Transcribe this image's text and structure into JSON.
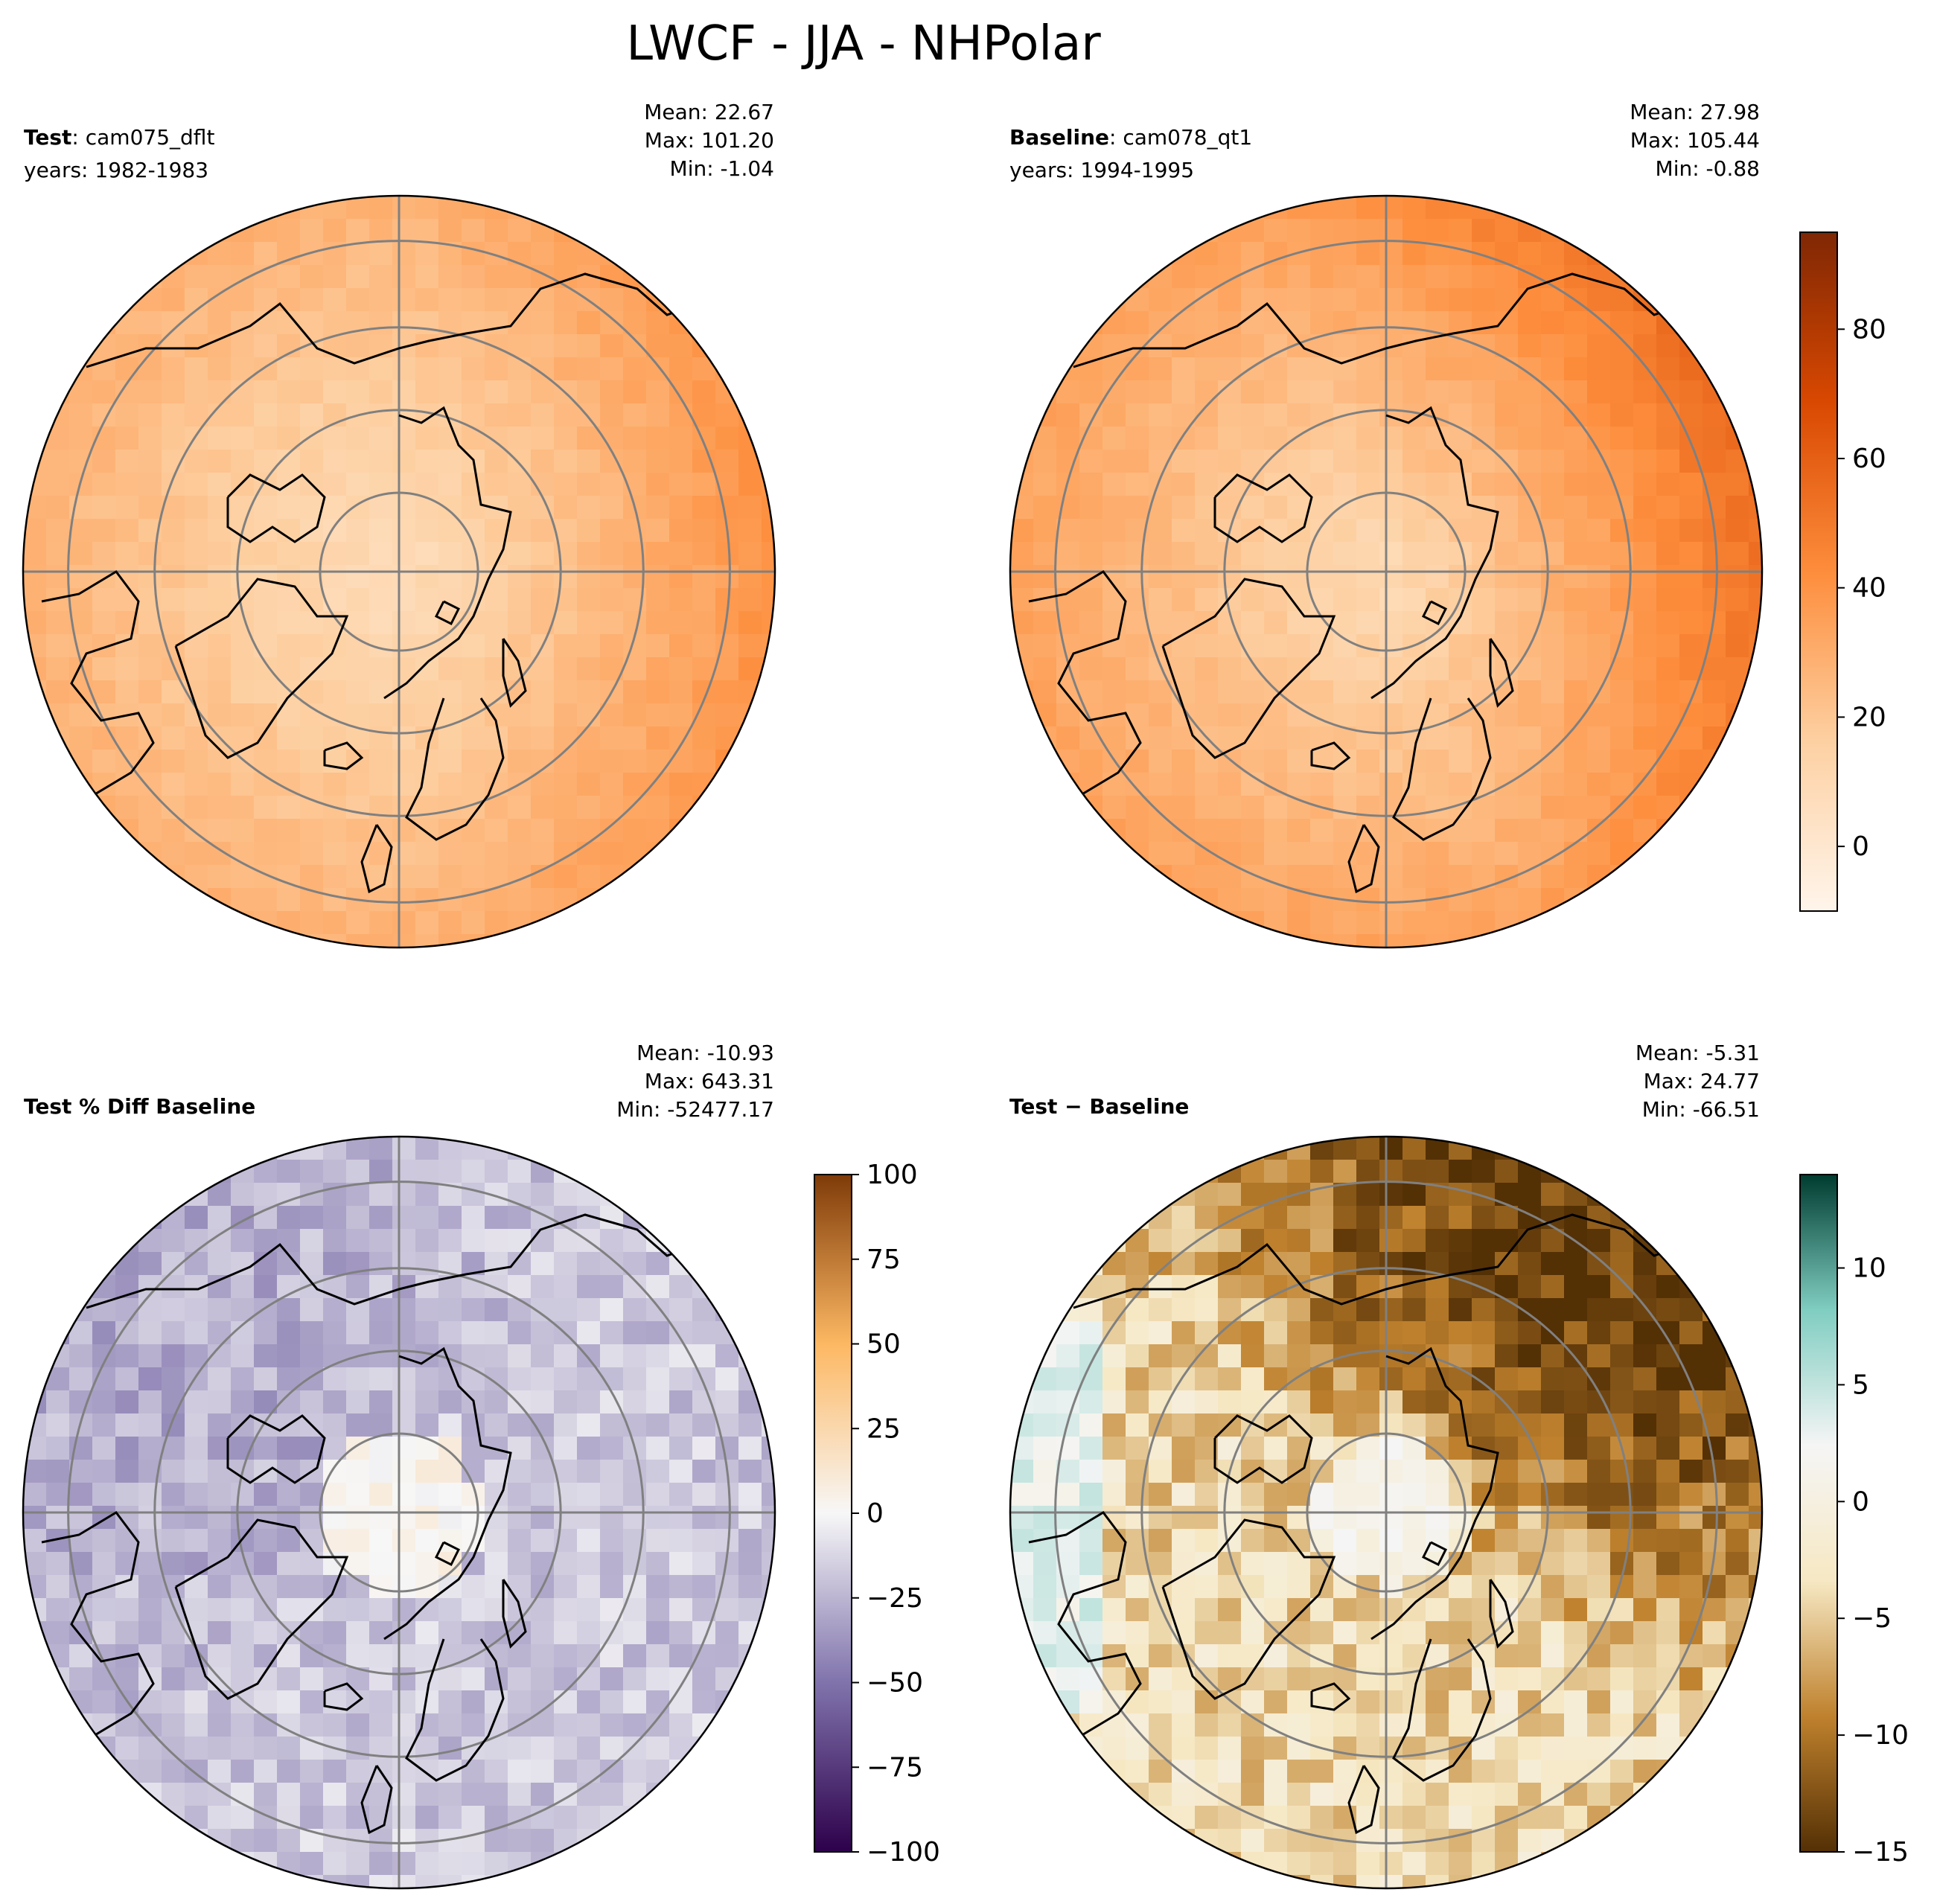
{
  "title": "LWCF - JJA - NHPolar",
  "panels": [
    {
      "id": "test",
      "label_bold": "Test",
      "label_rest": ": cam075_dflt",
      "sub": "years: 1982-1983",
      "stats": [
        "Mean: 22.67",
        "Max: 101.20",
        "Min: -1.04"
      ],
      "colormap": [
        "#fff5eb",
        "#fdd0a2",
        "#fd8d3c",
        "#d94801",
        "#7f2704"
      ]
    },
    {
      "id": "baseline",
      "label_bold": "Baseline",
      "label_rest": ": cam078_qt1",
      "sub": "years: 1994-1995",
      "stats": [
        "Mean: 27.98",
        "Max: 105.44",
        "Min: -0.88"
      ],
      "colormap": [
        "#fff5eb",
        "#fdd0a2",
        "#fd8d3c",
        "#d94801",
        "#7f2704"
      ]
    },
    {
      "id": "pctdiff",
      "label_bold": "Test % Diff Baseline",
      "label_rest": "",
      "sub": "",
      "stats": [
        "Mean: -10.93",
        "Max: 643.31",
        "Min: -52477.17"
      ],
      "colormap": [
        "#2d004b",
        "#8073ac",
        "#f7f7f7",
        "#fdb863",
        "#7f3b08"
      ]
    },
    {
      "id": "diff",
      "label_bold": "Test",
      "label_rest": " − Baseline",
      "sub": "",
      "stats": [
        "Mean: -5.31",
        "Max: 24.77",
        "Min: -66.51"
      ],
      "colormap": [
        "#543005",
        "#bf812d",
        "#f6e8c3",
        "#f5f5f5",
        "#80cdc1",
        "#003c30"
      ]
    }
  ],
  "chart_data": [
    {
      "type": "heatmap",
      "projection": "north-polar-stereographic",
      "panel": "test",
      "colorbar": {
        "shared_with": "baseline",
        "range": [
          -10,
          95
        ],
        "ticks": [
          0,
          20,
          40,
          60,
          80
        ],
        "tick_labels": [
          "0",
          "20",
          "40",
          "60",
          "80"
        ]
      },
      "field": {
        "polar_value": 5,
        "atlantic_sector": 30,
        "pacific_sector": 40
      }
    },
    {
      "type": "heatmap",
      "projection": "north-polar-stereographic",
      "panel": "baseline",
      "colorbar": {
        "range": [
          -10,
          95
        ],
        "ticks": [
          0,
          20,
          40,
          60,
          80
        ],
        "tick_labels": [
          "0",
          "20",
          "40",
          "60",
          "80"
        ]
      },
      "field": {
        "polar_value": 8,
        "atlantic_sector": 35,
        "pacific_sector": 50
      }
    },
    {
      "type": "heatmap",
      "projection": "north-polar-stereographic",
      "panel": "pctdiff",
      "colorbar": {
        "range": [
          -100,
          100
        ],
        "ticks": [
          -100,
          -75,
          -50,
          -25,
          0,
          25,
          50,
          75,
          100
        ],
        "tick_labels": [
          "−100",
          "−75",
          "−50",
          "−25",
          "0",
          "25",
          "50",
          "75",
          "100"
        ]
      },
      "field": {
        "typical_value": -15
      }
    },
    {
      "type": "heatmap",
      "projection": "north-polar-stereographic",
      "panel": "diff",
      "colorbar": {
        "range": [
          -15,
          14
        ],
        "ticks": [
          -15,
          -10,
          -5,
          0,
          5,
          10
        ],
        "tick_labels": [
          "−15",
          "−10",
          "−5",
          "0",
          "5",
          "10"
        ]
      },
      "field": {
        "typical_value": -4,
        "pacific_sector": -12
      }
    }
  ]
}
